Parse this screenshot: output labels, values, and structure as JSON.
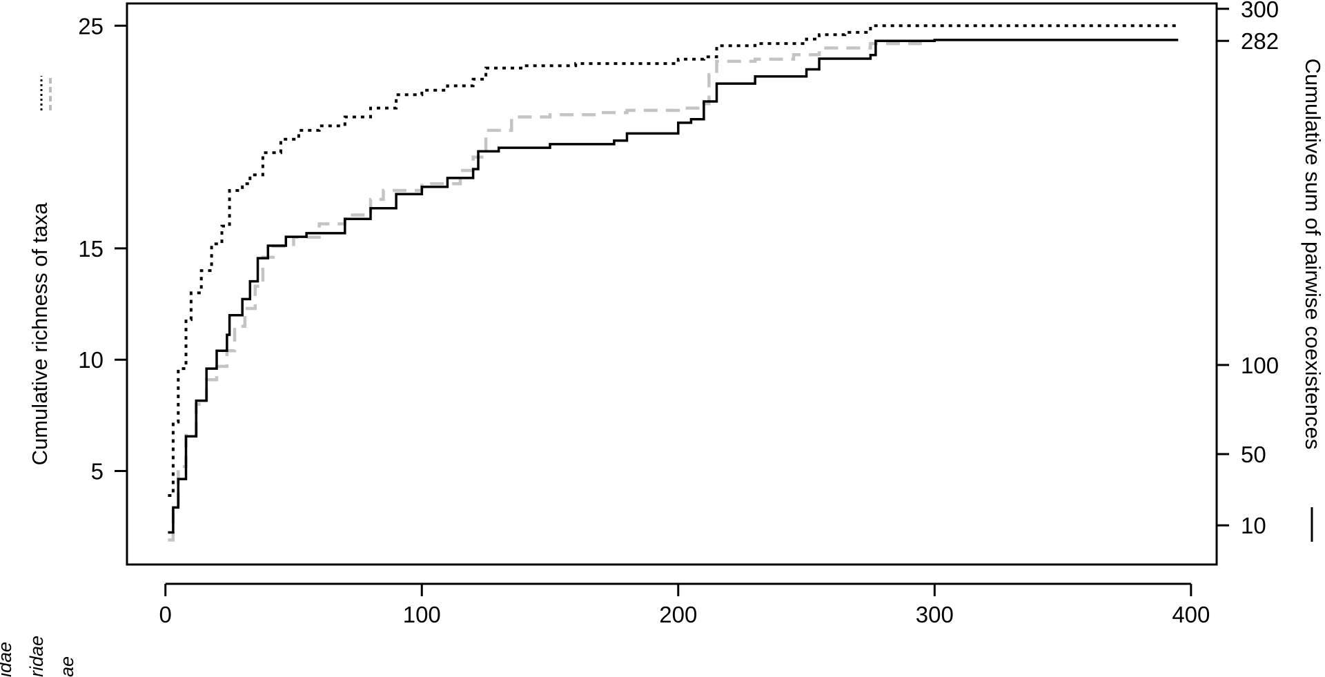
{
  "chart_data": {
    "type": "line",
    "xlabel": "",
    "ylabel_left": "Cumulative richness of taxa",
    "ylabel_right": "Cumulative sum of pairwise coexistences",
    "legend_marks": [
      "dotted",
      "dashed-gray",
      "solid"
    ],
    "x_ticks": [
      "0",
      "100",
      "200",
      "300",
      "400"
    ],
    "y_left_ticks": [
      "5",
      "10",
      "15",
      "25"
    ],
    "y_right_ticks": [
      "10",
      "50",
      "100",
      "282",
      "300"
    ],
    "xlim": [
      -15,
      410
    ],
    "ylim_left": [
      0.8,
      26
    ],
    "ylim_right": [
      -12,
      303
    ],
    "grid": false,
    "clipped_side_text": [
      "idae",
      "ridae",
      "ae"
    ],
    "series": [
      {
        "style": "dotted",
        "color": "#000000",
        "axis": "left",
        "points": [
          [
            1,
            3.9
          ],
          [
            3,
            7.2
          ],
          [
            5,
            9.6
          ],
          [
            8,
            11.8
          ],
          [
            10,
            13
          ],
          [
            14,
            14
          ],
          [
            18,
            15.2
          ],
          [
            22,
            16
          ],
          [
            25,
            17.6
          ],
          [
            30,
            17.9
          ],
          [
            33,
            18.3
          ],
          [
            38,
            19.3
          ],
          [
            45,
            19.9
          ],
          [
            52,
            20.3
          ],
          [
            60,
            20.5
          ],
          [
            70,
            20.9
          ],
          [
            80,
            21.3
          ],
          [
            90,
            21.9
          ],
          [
            100,
            22.1
          ],
          [
            110,
            22.3
          ],
          [
            120,
            22.6
          ],
          [
            125,
            23.1
          ],
          [
            140,
            23.2
          ],
          [
            160,
            23.3
          ],
          [
            180,
            23.3
          ],
          [
            200,
            23.5
          ],
          [
            210,
            23.6
          ],
          [
            215,
            24.1
          ],
          [
            230,
            24.2
          ],
          [
            250,
            24.4
          ],
          [
            255,
            24.6
          ],
          [
            265,
            24.7
          ],
          [
            275,
            25.0
          ],
          [
            300,
            25.0
          ],
          [
            395,
            25.0
          ]
        ]
      },
      {
        "style": "dashed",
        "color": "#c4c4c4",
        "axis": "left",
        "points": [
          [
            1,
            1.9
          ],
          [
            3,
            3.4
          ],
          [
            5,
            5.2
          ],
          [
            8,
            6.6
          ],
          [
            12,
            8
          ],
          [
            16,
            9.1
          ],
          [
            20,
            9.7
          ],
          [
            24,
            10.4
          ],
          [
            27,
            11.5
          ],
          [
            31,
            12.3
          ],
          [
            35,
            13.3
          ],
          [
            38,
            14.6
          ],
          [
            42,
            15.1
          ],
          [
            50,
            15.5
          ],
          [
            60,
            16.1
          ],
          [
            70,
            16.5
          ],
          [
            80,
            17.2
          ],
          [
            85,
            17.6
          ],
          [
            100,
            17.9
          ],
          [
            115,
            18.5
          ],
          [
            120,
            19.1
          ],
          [
            125,
            20.3
          ],
          [
            135,
            20.9
          ],
          [
            150,
            21.0
          ],
          [
            170,
            21.1
          ],
          [
            180,
            21.2
          ],
          [
            200,
            21.3
          ],
          [
            210,
            21.5
          ],
          [
            212,
            22.8
          ],
          [
            215,
            23.4
          ],
          [
            230,
            23.5
          ],
          [
            245,
            23.7
          ],
          [
            255,
            24.0
          ],
          [
            265,
            24.0
          ],
          [
            275,
            24.2
          ],
          [
            295,
            24.2
          ]
        ]
      },
      {
        "style": "solid",
        "color": "#000000",
        "axis": "right",
        "points": [
          [
            1,
            6
          ],
          [
            3,
            20
          ],
          [
            5,
            36
          ],
          [
            8,
            60
          ],
          [
            12,
            80
          ],
          [
            16,
            98
          ],
          [
            20,
            108
          ],
          [
            24,
            117
          ],
          [
            25,
            128
          ],
          [
            30,
            137
          ],
          [
            33,
            147
          ],
          [
            36,
            160
          ],
          [
            40,
            167
          ],
          [
            47,
            172
          ],
          [
            55,
            174
          ],
          [
            70,
            182
          ],
          [
            80,
            188
          ],
          [
            90,
            196
          ],
          [
            100,
            200
          ],
          [
            110,
            205
          ],
          [
            120,
            210
          ],
          [
            122,
            220
          ],
          [
            130,
            222
          ],
          [
            150,
            224
          ],
          [
            175,
            226
          ],
          [
            180,
            230
          ],
          [
            200,
            236
          ],
          [
            205,
            238
          ],
          [
            210,
            248
          ],
          [
            215,
            258
          ],
          [
            230,
            262
          ],
          [
            250,
            266
          ],
          [
            255,
            272
          ],
          [
            275,
            274
          ],
          [
            277,
            282
          ],
          [
            300,
            282.5
          ],
          [
            395,
            282.5
          ]
        ]
      }
    ]
  }
}
